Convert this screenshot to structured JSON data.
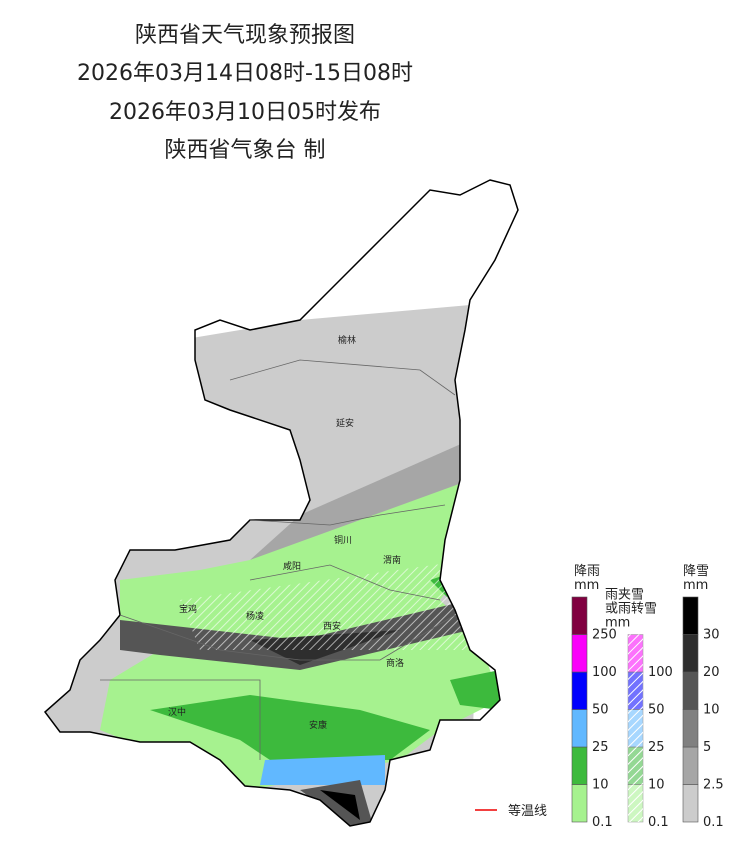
{
  "header": {
    "title": "陕西省天气现象预报图",
    "period": "2026年03月14日08时-15日08时",
    "issued": "2026年03月10日05时发布",
    "issuer": "陕西省气象台 制"
  },
  "cities": [
    "榆林",
    "延安",
    "铜川",
    "咸阳",
    "渭南",
    "宝鸡",
    "杨凌",
    "西安",
    "商洛",
    "汉中",
    "安康"
  ],
  "legends": [
    {
      "title": [
        "降雨",
        "mm"
      ],
      "hatched": false,
      "levels": [
        {
          "label": "0.1",
          "color": "#a6f28f"
        },
        {
          "label": "10",
          "color": "#3dba3d"
        },
        {
          "label": "25",
          "color": "#61b8ff"
        },
        {
          "label": "50",
          "color": "#0000fe"
        },
        {
          "label": "100",
          "color": "#fa00fa"
        },
        {
          "label": "250",
          "color": "#800040"
        }
      ]
    },
    {
      "title": [
        "雨夹雪",
        "或雨转雪",
        "mm"
      ],
      "hatched": true,
      "levels": [
        {
          "label": "0.1",
          "color": "#a6f28f"
        },
        {
          "label": "10",
          "color": "#3dba3d"
        },
        {
          "label": "25",
          "color": "#61b8ff"
        },
        {
          "label": "50",
          "color": "#0000fe"
        },
        {
          "label": "100",
          "color": "#fa00fa"
        }
      ]
    },
    {
      "title": [
        "降雪",
        "mm"
      ],
      "hatched": false,
      "levels": [
        {
          "label": "0.1",
          "color": "#cccccc"
        },
        {
          "label": "2.5",
          "color": "#a6a6a6"
        },
        {
          "label": "5",
          "color": "#808080"
        },
        {
          "label": "10",
          "color": "#555555"
        },
        {
          "label": "20",
          "color": "#2e2e2e"
        },
        {
          "label": "30",
          "color": "#000000"
        }
      ]
    }
  ],
  "isotherm_label": "等温线"
}
